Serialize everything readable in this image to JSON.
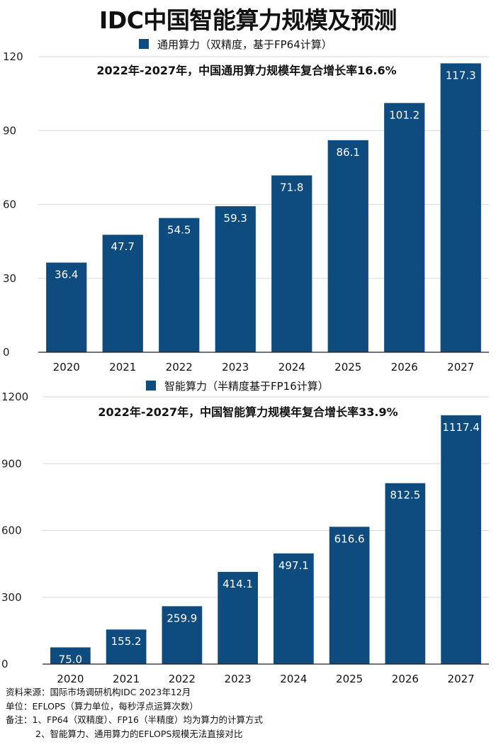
{
  "title": "IDC中国智能算力规模及预测",
  "colors": {
    "bar": "#0e4c80",
    "value_text": "#ffffff"
  },
  "chart_data": [
    {
      "type": "bar",
      "title": "2022年-2027年，中国通用算力规模年复合增长率16.6%",
      "legend": "通用算力（双精度，基于FP64计算）",
      "legend_placement": "top-center",
      "categories": [
        "2020",
        "2021",
        "2022",
        "2023",
        "2024",
        "2025",
        "2026",
        "2027"
      ],
      "values": [
        36.4,
        47.7,
        54.5,
        59.3,
        71.8,
        86.1,
        101.2,
        117.3
      ],
      "value_labels": [
        "36.4",
        "47.7",
        "54.5",
        "59.3",
        "71.8",
        "86.1",
        "101.2",
        "117.3"
      ],
      "ylim": [
        0,
        120
      ],
      "yticks": [
        0,
        30,
        60,
        90,
        120
      ],
      "ytick_labels": [
        "0",
        "30",
        "60",
        "90",
        "120"
      ],
      "grid": true
    },
    {
      "type": "bar",
      "title": "2022年-2027年，中国智能算力规模年复合增长率33.9%",
      "legend": "智能算力（半精度基于FP16计算）",
      "legend_placement": "top-center",
      "categories": [
        "2020",
        "2021",
        "2022",
        "2023",
        "2024",
        "2025",
        "2026",
        "2027"
      ],
      "values": [
        75.0,
        155.2,
        259.9,
        414.1,
        497.1,
        616.6,
        812.5,
        1117.4
      ],
      "value_labels": [
        "75.0",
        "155.2",
        "259.9",
        "414.1",
        "497.1",
        "616.6",
        "812.5",
        "1117.4"
      ],
      "ylim": [
        0,
        1200
      ],
      "yticks": [
        0,
        300,
        600,
        900,
        1200
      ],
      "ytick_labels": [
        "0",
        "300",
        "600",
        "900",
        "1200"
      ],
      "grid": true
    }
  ],
  "footer": {
    "source": "资料来源：国际市场调研机构IDC 2023年12月",
    "unit": "单位：EFLOPS（算力单位，每秒浮点运算次数）",
    "note1": "备注：1、FP64（双精度）、FP16（半精度）均为算力的计算方式",
    "note2": "2、智能算力、通用算力的EFLOPS规模无法直接对比"
  }
}
